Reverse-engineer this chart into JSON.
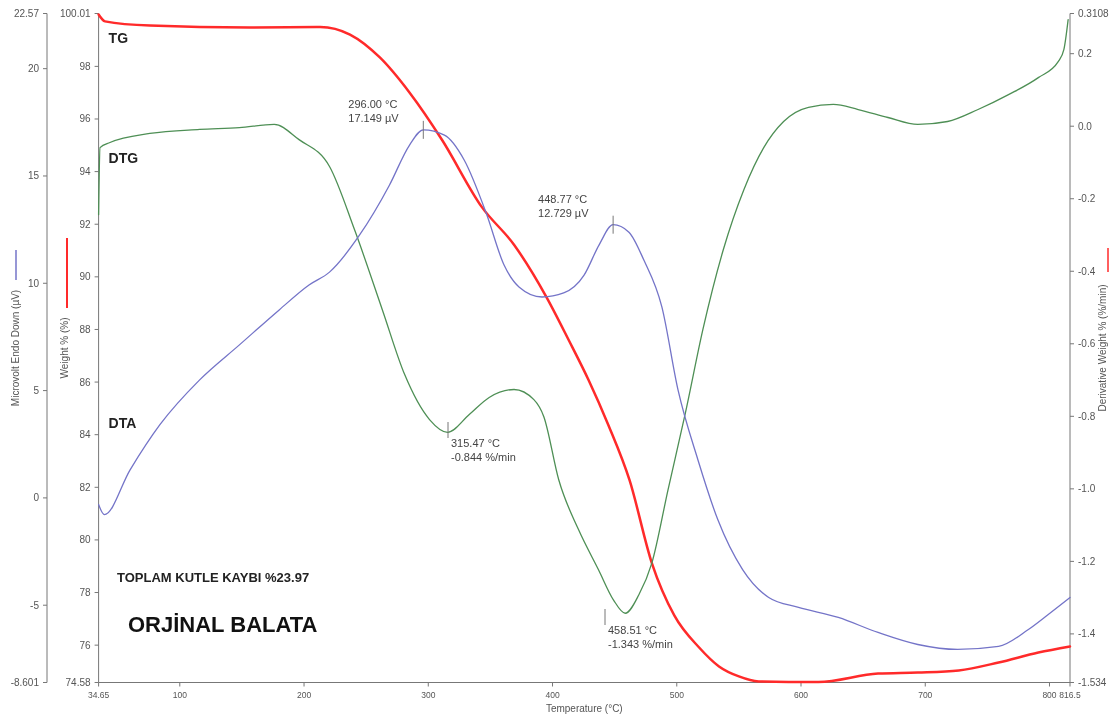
{
  "chart_data": {
    "type": "line",
    "title": "ORJİNAL BALATA",
    "xlabel": "Temperature (°C)",
    "ylabel": "Microvolt Endo Down (µV)",
    "y2label": "Derivative Weight % (%/min)",
    "y3label": "Weight % (%)",
    "xlim": [
      34.65,
      816.5
    ],
    "xticks": [
      34.65,
      100,
      200,
      300,
      400,
      500,
      600,
      700,
      800,
      816.5
    ],
    "ylim": [
      -8.601,
      22.57
    ],
    "yticks": [
      -8.601,
      -5,
      0,
      5,
      10,
      15,
      20,
      22.57
    ],
    "y2lim": [
      -1.534,
      0.3108
    ],
    "y2ticks": [
      -1.534,
      -1.4,
      -1.2,
      {
        "value": -1.0,
        "label": "-1.0"
      },
      -0.8,
      -0.6,
      -0.4,
      -0.2,
      {
        "value": 0,
        "label": "0.0"
      },
      0.2,
      0.3108
    ],
    "y3lim": [
      74.58,
      100.01
    ],
    "y3ticks": [
      74.58,
      76,
      78,
      80,
      82,
      84,
      86,
      88,
      90,
      92,
      94,
      96,
      98,
      100.01
    ],
    "grid": false,
    "line_style": "solid",
    "series": [
      {
        "name": "TG",
        "color": "#ff2a2a",
        "axis": "y3",
        "x": [
          34.65,
          39.8,
          76,
          156,
          213,
          237,
          261,
          285,
          311,
          343,
          369,
          395,
          413,
          429,
          445,
          462,
          480,
          498,
          518,
          534,
          550,
          566,
          590,
          614,
          662,
          694,
          727,
          759,
          791,
          816.5
        ],
        "values": [
          99.97,
          99.71,
          99.55,
          99.48,
          99.5,
          99.21,
          98.34,
          97.0,
          95.21,
          92.66,
          91.22,
          89.24,
          87.6,
          86.08,
          84.36,
          82.27,
          79.11,
          77.13,
          75.91,
          75.19,
          74.81,
          74.62,
          74.6,
          74.6,
          74.92,
          74.96,
          75.04,
          75.34,
          75.72,
          75.95
        ]
      },
      {
        "name": "DTG",
        "color": "#4e8f55",
        "axis": "y2",
        "x": [
          34.65,
          35.8,
          43.8,
          75.9,
          116,
          148,
          176,
          196,
          220.5,
          240.6,
          263,
          281,
          301,
          315.47,
          333,
          349,
          369,
          385,
          393,
          405,
          421,
          437,
          449,
          458.51,
          469.5,
          480,
          493,
          507,
          521,
          537.5,
          554,
          570,
          586,
          606,
          626,
          646,
          670,
          694,
          718,
          742.5,
          767,
          791,
          807,
          811.6,
          815
        ],
        "values": [
          -0.244,
          -0.059,
          -0.045,
          -0.02,
          -0.009,
          -0.004,
          0.005,
          -0.037,
          -0.111,
          -0.285,
          -0.506,
          -0.685,
          -0.809,
          -0.844,
          -0.795,
          -0.748,
          -0.726,
          -0.754,
          -0.801,
          -0.975,
          -1.113,
          -1.223,
          -1.306,
          -1.343,
          -1.292,
          -1.204,
          -1.002,
          -0.79,
          -0.561,
          -0.34,
          -0.175,
          -0.059,
          0.013,
          0.052,
          0.06,
          0.046,
          0.024,
          0.005,
          0.013,
          0.046,
          0.087,
          0.134,
          0.178,
          0.212,
          0.294
        ]
      },
      {
        "name": "DTA",
        "color": "#7474c8",
        "axis": "y",
        "x": [
          34.65,
          39.3,
          60,
          84,
          116,
          148,
          180,
          204,
          220.5,
          244.6,
          268.7,
          284.8,
          296.0,
          313,
          329,
          346.6,
          361,
          373,
          391.6,
          409,
          425.4,
          437.4,
          448.77,
          461.5,
          473.5,
          488,
          501,
          517,
          533,
          553,
          574,
          598,
          630,
          662,
          694,
          726,
          759,
          783,
          799,
          816.5
        ],
        "values": [
          -0.31,
          -0.78,
          1.31,
          3.41,
          5.5,
          7.13,
          8.76,
          9.92,
          10.52,
          12.24,
          14.57,
          16.43,
          17.149,
          16.9,
          15.73,
          13.27,
          10.85,
          9.83,
          9.36,
          9.55,
          10.38,
          11.78,
          12.729,
          12.38,
          11.08,
          8.9,
          5.03,
          1.78,
          -1.01,
          -3.34,
          -4.64,
          -5.1,
          -5.57,
          -6.27,
          -6.83,
          -7.06,
          -6.92,
          -6.13,
          -5.43,
          -4.64
        ]
      }
    ],
    "annotations": [
      {
        "text": "296.00 °C\n17.149 µV",
        "x": 296.0,
        "y": 17.149
      },
      {
        "text": "448.77 °C\n12.729 µV",
        "x": 448.77,
        "y": 12.729
      },
      "315.47 °C\n-0.844 %/min",
      "458.51 °C\n-1.343 %/min",
      "TOPLAM KUTLE KAYBI %23.97"
    ]
  }
}
